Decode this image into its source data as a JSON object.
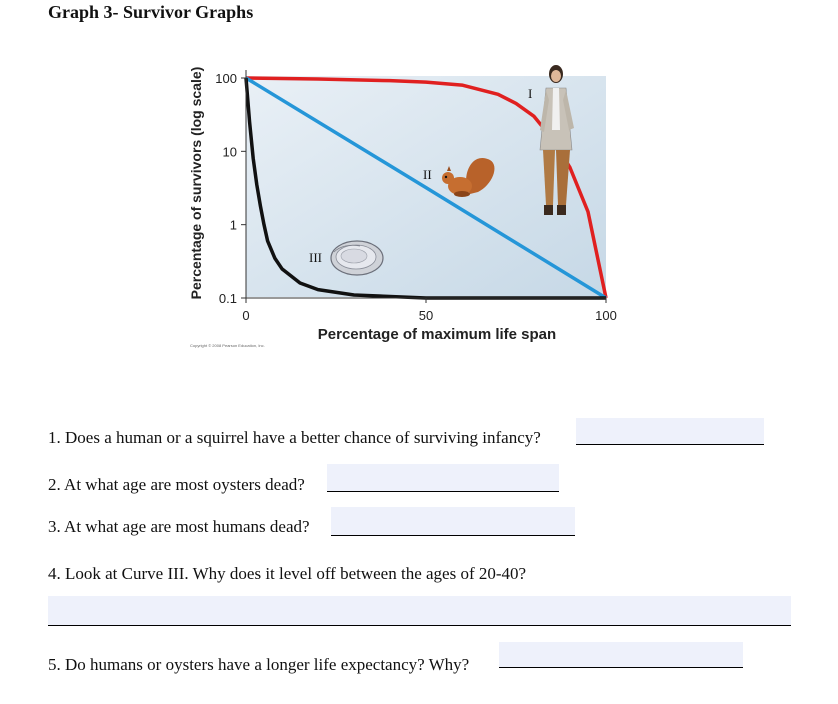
{
  "document": {
    "title": "Graph 3- Survivor Graphs"
  },
  "chart_data": {
    "type": "line",
    "xlabel": "Percentage of maximum life span",
    "ylabel": "Percentage of survivors (log scale)",
    "x_ticks": [
      "0",
      "50",
      "100"
    ],
    "y_ticks": [
      "100",
      "10",
      "1",
      "0.1"
    ],
    "xlim": [
      0,
      100
    ],
    "ylim": [
      0.1,
      100
    ],
    "y_scale": "log",
    "series": [
      {
        "name": "I",
        "color": "#e02020",
        "x": [
          0,
          20,
          40,
          50,
          60,
          70,
          75,
          80,
          85,
          90,
          95,
          100
        ],
        "y": [
          100,
          97,
          92,
          88,
          80,
          60,
          45,
          30,
          15,
          6,
          1.5,
          0.1
        ]
      },
      {
        "name": "II",
        "color": "#2596d8",
        "x": [
          0,
          50,
          100
        ],
        "y": [
          100,
          3.2,
          0.1
        ]
      },
      {
        "name": "III",
        "color": "#111111",
        "x": [
          0,
          1,
          2,
          3,
          4,
          5,
          6,
          8,
          10,
          15,
          20,
          30,
          50,
          80,
          100
        ],
        "y": [
          100,
          25,
          8,
          3.5,
          1.8,
          1,
          0.6,
          0.35,
          0.25,
          0.16,
          0.13,
          0.11,
          0.1,
          0.1,
          0.1
        ]
      }
    ],
    "background_color": "#d5e3ee",
    "grid": false,
    "legend": "labels on curves"
  },
  "copyright": "Copyright © 2008 Pearson Education, Inc.",
  "questions": [
    {
      "text": "1. Does a human or a squirrel have a better chance of surviving infancy?",
      "value": ""
    },
    {
      "text": "2. At what age are most oysters dead?",
      "value": ""
    },
    {
      "text": "3. At what age are most humans dead?",
      "value": ""
    },
    {
      "text": "4. Look at Curve III. Why does it level off between the ages of 20-40?",
      "value": ""
    },
    {
      "text": "5. Do humans or oysters have a longer life expectancy? Why?",
      "value": ""
    }
  ]
}
